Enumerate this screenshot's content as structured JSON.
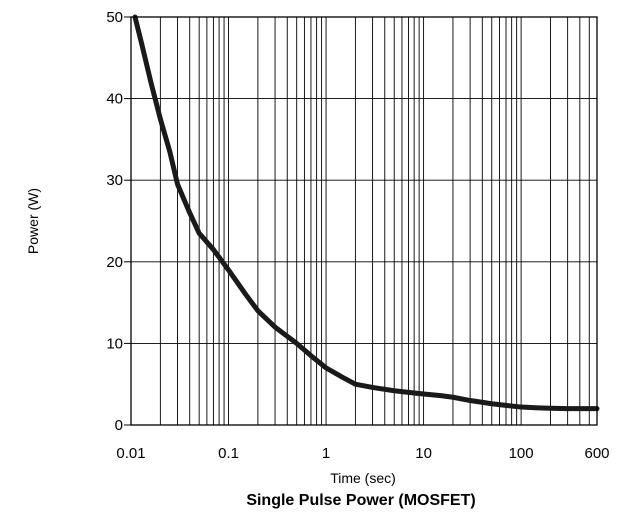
{
  "chart_data": {
    "type": "line",
    "title": "Single Pulse Power (MOSFET)",
    "xlabel": "Time (sec)",
    "ylabel": "Power  (W)",
    "x_scale": "log",
    "xlim": [
      0.01,
      600
    ],
    "ylim": [
      0,
      50
    ],
    "x_ticks": [
      0.01,
      0.1,
      1,
      10,
      100,
      600
    ],
    "x_tick_labels": [
      "0.01",
      "0.1",
      "1",
      "10",
      "100",
      "600"
    ],
    "y_ticks": [
      0,
      10,
      20,
      30,
      40,
      50
    ],
    "y_tick_labels": [
      "0",
      "10",
      "20",
      "30",
      "40",
      "50"
    ],
    "grid": true,
    "legend": "none",
    "series": [
      {
        "color": "#1a1a1a",
        "x": [
          0.011,
          0.013,
          0.016,
          0.02,
          0.025,
          0.03,
          0.04,
          0.05,
          0.07,
          0.1,
          0.15,
          0.2,
          0.3,
          0.5,
          0.7,
          1,
          1.5,
          2,
          3,
          5,
          7,
          10,
          15,
          20,
          30,
          50,
          70,
          100,
          150,
          200,
          300,
          450,
          600
        ],
        "y": [
          50,
          46.5,
          42,
          37.5,
          33.5,
          29.5,
          26,
          23.5,
          21.5,
          19,
          16,
          14,
          12,
          10,
          8.5,
          7,
          5.8,
          5,
          4.6,
          4.2,
          4.0,
          3.8,
          3.6,
          3.4,
          3.0,
          2.6,
          2.4,
          2.2,
          2.1,
          2.05,
          2.0,
          2.0,
          2.0
        ]
      }
    ]
  }
}
